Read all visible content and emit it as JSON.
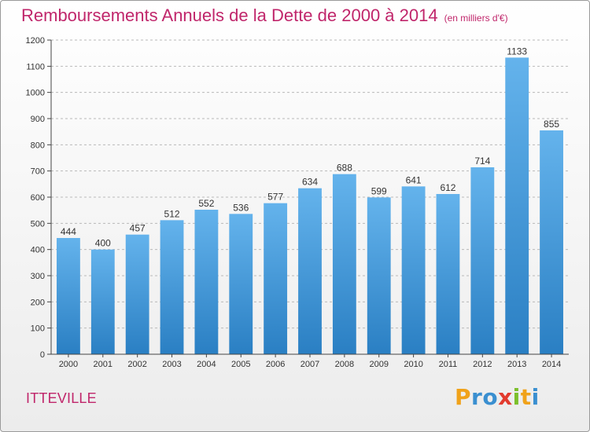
{
  "header": {
    "title": "Remboursements Annuels de la Dette de 2000 à 2014",
    "unit": "(en milliers d'€)"
  },
  "footer": {
    "commune": "ITTEVILLE",
    "logo": "Proxiti",
    "logo_letters": [
      {
        "ch": "P",
        "color": "#f0a21a"
      },
      {
        "ch": "r",
        "color": "#3a8fd0"
      },
      {
        "ch": "o",
        "color": "#3a8fd0"
      },
      {
        "ch": "x",
        "color": "#e23b2e"
      },
      {
        "ch": "i",
        "color": "#7cbf2a"
      },
      {
        "ch": "t",
        "color": "#f0a21a"
      },
      {
        "ch": "i",
        "color": "#3a8fd0"
      }
    ]
  },
  "colors": {
    "bar_top": "#64b3ec",
    "bar_bottom": "#2a7fc3",
    "grid": "#b9b9b9",
    "axis": "#444444"
  },
  "chart_data": {
    "type": "bar",
    "title": "Remboursements Annuels de la Dette de 2000 à 2014",
    "ylabel": "",
    "xlabel": "",
    "categories": [
      "2000",
      "2001",
      "2002",
      "2003",
      "2004",
      "2005",
      "2006",
      "2007",
      "2008",
      "2009",
      "2010",
      "2011",
      "2012",
      "2013",
      "2014"
    ],
    "values": [
      444,
      400,
      457,
      512,
      552,
      536,
      577,
      634,
      688,
      599,
      641,
      612,
      714,
      1133,
      855
    ],
    "ylim": [
      0,
      1200
    ],
    "yticks": [
      0,
      100,
      200,
      300,
      400,
      500,
      600,
      700,
      800,
      900,
      1000,
      1100,
      1200
    ],
    "grid": true
  }
}
